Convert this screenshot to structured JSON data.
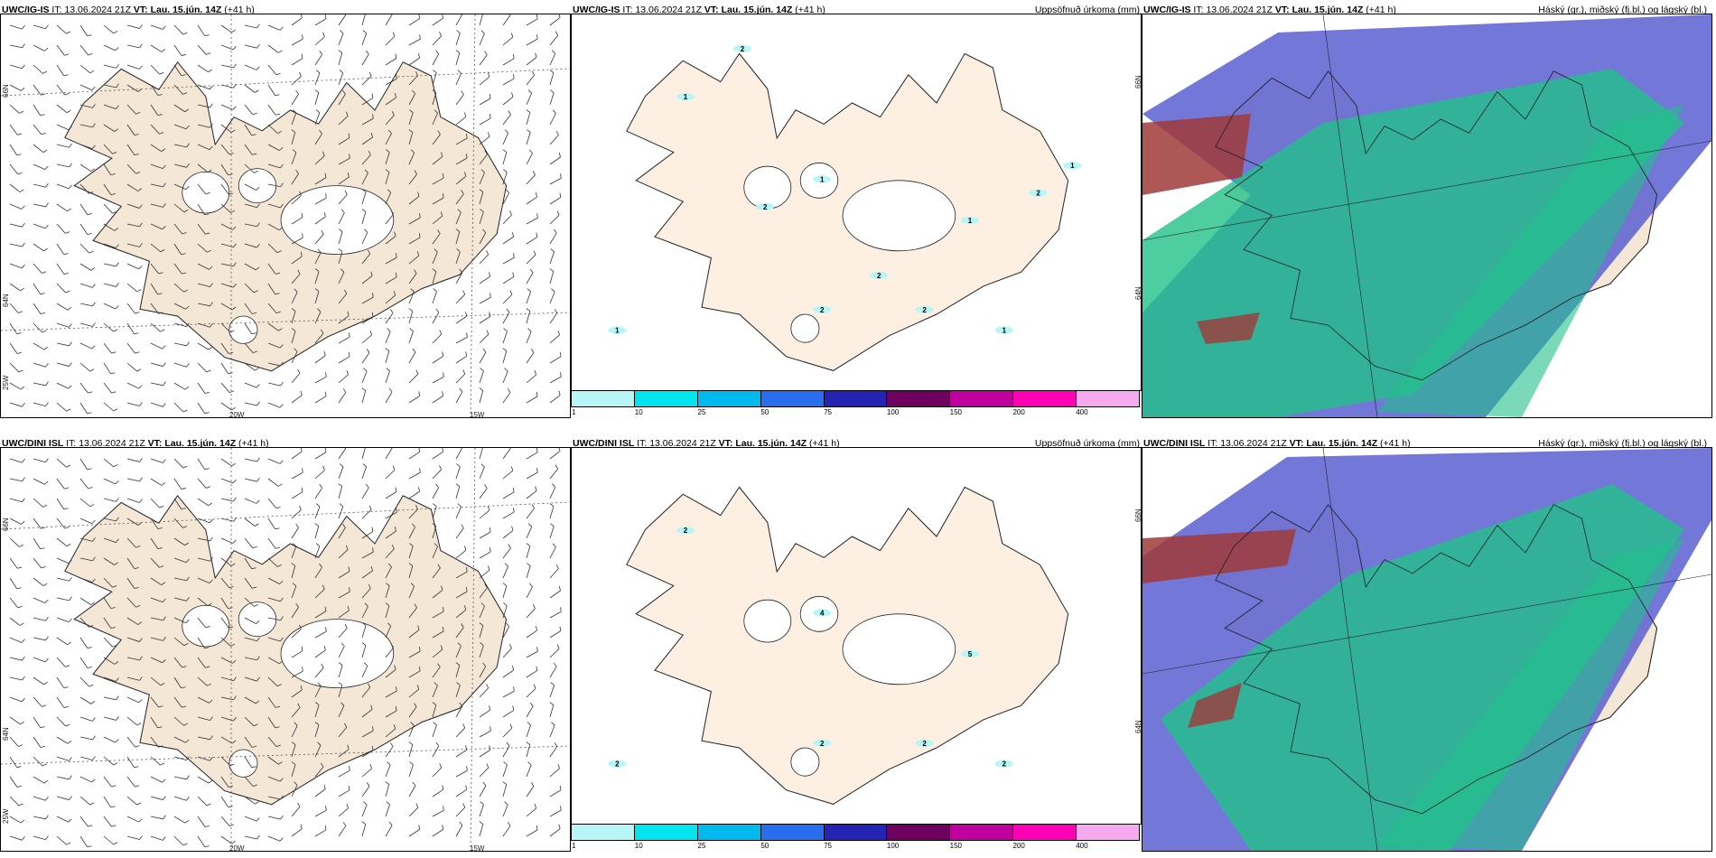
{
  "panels": [
    {
      "model": "UWC/IG-IS",
      "it_label": "IT:",
      "it_value": "13.06.2024 21Z",
      "vt_label": "VT:",
      "vt_value": "Lau. 15.jún. 14Z",
      "lead": "(+41 h)",
      "wind_axes": {
        "lon": [
          "20W",
          "15W"
        ],
        "lat": [
          "66N",
          "64N",
          "25W"
        ]
      },
      "precip_title": "Uppsöfnuð úrkoma (mm)",
      "precip_lat": [
        "66N",
        "64N"
      ],
      "precip_values": [
        "1",
        "2",
        "2",
        "1",
        "1",
        "1",
        "1",
        "2",
        "2",
        "2",
        "2",
        "1"
      ],
      "cloud_title": "Háský (gr.), miðský (fj.bl.) og lágský (bl.)"
    },
    {
      "model": "UWC/DINI ISL",
      "it_label": "IT:",
      "it_value": "13.06.2024 21Z",
      "vt_label": "VT:",
      "vt_value": "Lau. 15.jún. 14Z",
      "lead": "(+41 h)",
      "wind_axes": {
        "lon": [
          "20W",
          "15W"
        ],
        "lat": [
          "66N",
          "64N",
          "25W"
        ]
      },
      "precip_title": "Uppsöfnuð úrkoma (mm)",
      "precip_lat": [
        "66N",
        "64N"
      ],
      "precip_values": [
        "2",
        "2",
        "2",
        "2",
        "2",
        "4",
        "5"
      ],
      "cloud_title": "Háský (gr.), miðský (fj.bl.) og lágský (bl.)"
    }
  ],
  "colorbar": {
    "labels": [
      "1",
      "10",
      "25",
      "50",
      "75",
      "100",
      "150",
      "200",
      "400"
    ],
    "colors": [
      "#b7f6f6",
      "#00e5ee",
      "#00b9ee",
      "#2a6ef0",
      "#2424b4",
      "#6e0060",
      "#c0009c",
      "#ff00b4",
      "#f5aaf0"
    ]
  },
  "colors": {
    "land": "#f4e7d6",
    "land_precip": "#fdf0e3",
    "cloud_high": "#5b5fd0",
    "cloud_mid": "#22c08a",
    "cloud_low": "#a03a3a"
  }
}
